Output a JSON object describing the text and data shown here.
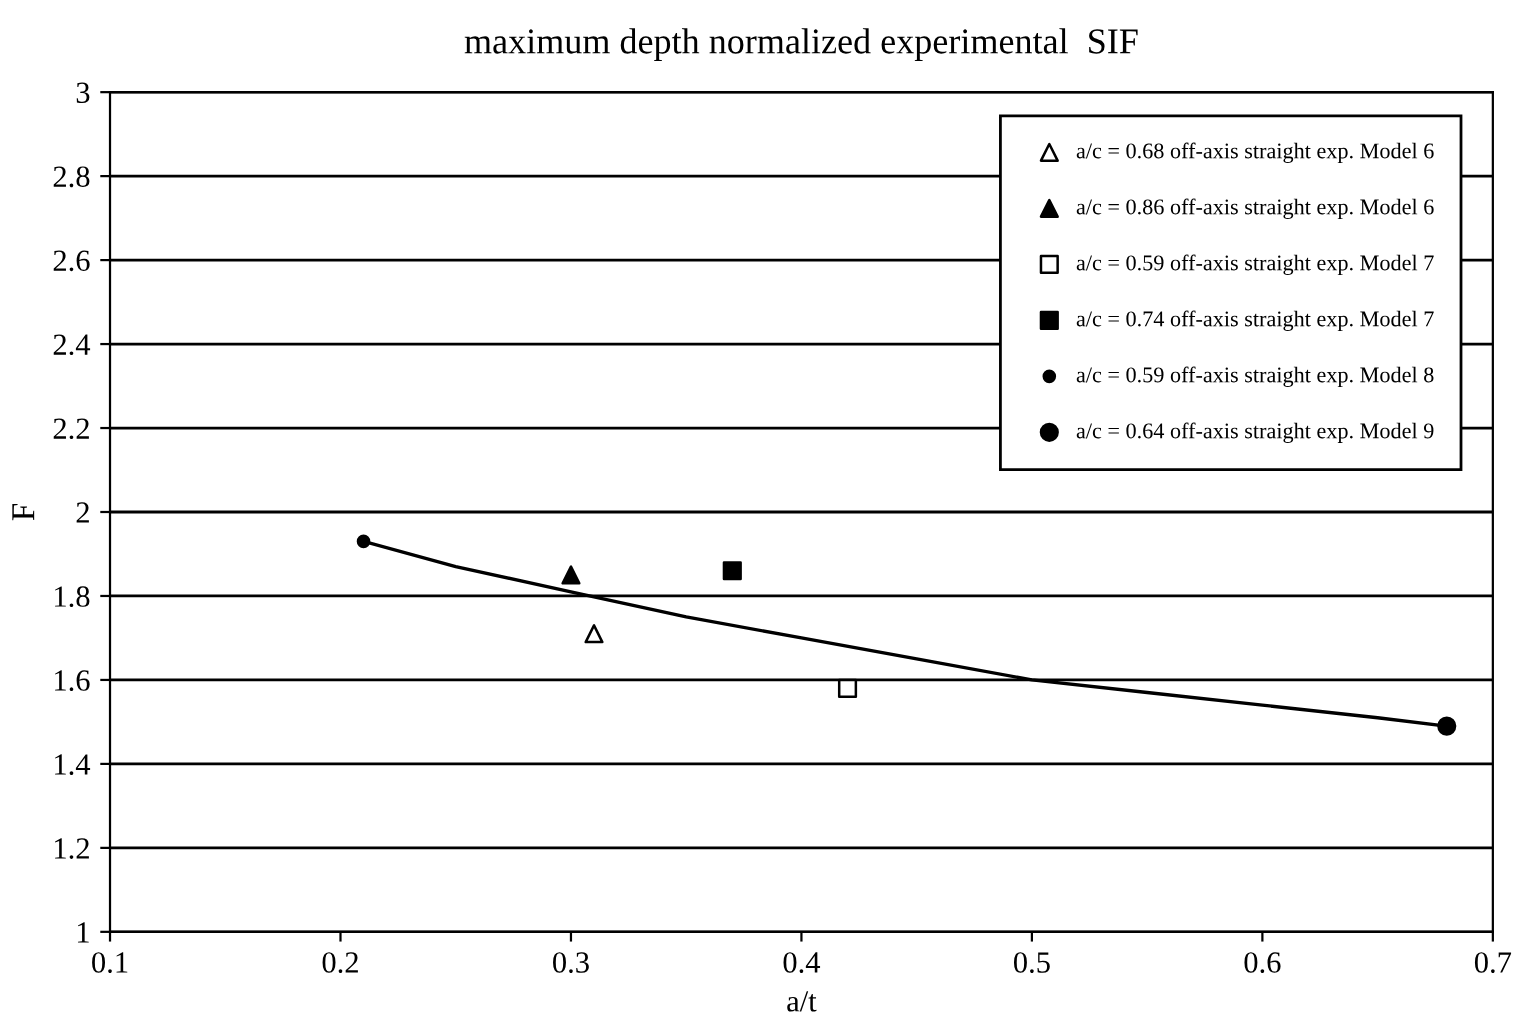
{
  "chart_data": {
    "type": "scatter",
    "title": "maximum depth normalized experimental  SIF",
    "xlabel": "a/t",
    "ylabel": "F",
    "xlim": [
      0.1,
      0.7
    ],
    "xticks": [
      0.1,
      0.2,
      0.3,
      0.4,
      0.5,
      0.6,
      0.7
    ],
    "ylim": [
      1,
      3
    ],
    "yticks": [
      1,
      1.2,
      1.4,
      1.6,
      1.8,
      2,
      2.2,
      2.4,
      2.6,
      2.8,
      3
    ],
    "grid": "y",
    "legend": "top right",
    "series": [
      {
        "name": "a/c = 0.68 off-axis straight exp. Model 6",
        "color": "#000000",
        "marker": "triangle",
        "x": [
          0.31
        ],
        "values": [
          1.71
        ]
      },
      {
        "name": "a/c = 0.86 off-axis straight exp. Model 6",
        "color": "#000000",
        "marker": "triangle",
        "x": [
          0.3
        ],
        "values": [
          1.85
        ]
      },
      {
        "name": "a/c = 0.59 off-axis straight exp. Model 7",
        "color": "#000000",
        "marker": "square",
        "x": [
          0.42
        ],
        "values": [
          1.58
        ]
      },
      {
        "name": "a/c = 0.74 off-axis straight exp. Model 7",
        "color": "#000000",
        "marker": "square",
        "x": [
          0.37
        ],
        "values": [
          1.86
        ]
      },
      {
        "name": "a/c = 0.59 off-axis straight exp. Model 8",
        "color": "#000000",
        "marker": "circle",
        "x": [
          0.21
        ],
        "values": [
          1.93
        ]
      },
      {
        "name": "a/c = 0.64 off-axis straight exp. Model 9",
        "color": "#000000",
        "marker": "circle",
        "x": [
          0.68
        ],
        "values": [
          1.49
        ]
      },
      {
        "type": "line",
        "color": "#000000",
        "marker": "none",
        "line_style": "solid",
        "x": [
          0.21,
          0.25,
          0.3,
          0.35,
          0.4,
          0.45,
          0.5,
          0.55,
          0.6,
          0.65,
          0.68
        ],
        "values": [
          1.93,
          1.87,
          1.81,
          1.75,
          1.7,
          1.65,
          1.6,
          1.57,
          1.54,
          1.51,
          1.49
        ]
      }
    ]
  }
}
